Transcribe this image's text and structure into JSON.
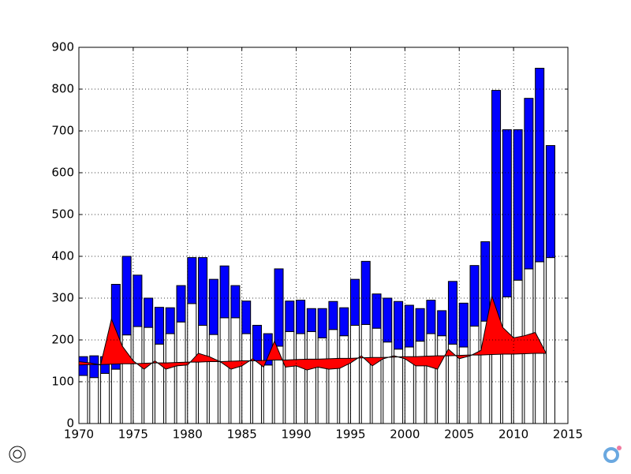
{
  "chart_data": {
    "type": "bar",
    "x": [
      1970,
      1971,
      1972,
      1973,
      1974,
      1975,
      1976,
      1977,
      1978,
      1979,
      1980,
      1981,
      1982,
      1983,
      1984,
      1985,
      1986,
      1987,
      1988,
      1989,
      1990,
      1991,
      1992,
      1993,
      1994,
      1995,
      1996,
      1997,
      1998,
      1999,
      2000,
      2001,
      2002,
      2003,
      2004,
      2005,
      2006,
      2007,
      2008,
      2009,
      2010,
      2011,
      2012,
      2013
    ],
    "series": [
      {
        "type": "bar",
        "color": "#ffffff",
        "values": [
          115,
          110,
          120,
          130,
          212,
          232,
          230,
          190,
          215,
          243,
          287,
          235,
          213,
          253,
          253,
          215,
          150,
          140,
          185,
          220,
          215,
          220,
          205,
          225,
          210,
          235,
          237,
          228,
          195,
          178,
          183,
          197,
          215,
          210,
          190,
          183,
          233,
          245,
          245,
          303,
          343,
          370,
          387,
          397
        ]
      },
      {
        "type": "bar",
        "color": "#0000ff",
        "values": [
          45,
          52,
          40,
          203,
          188,
          123,
          70,
          88,
          62,
          87,
          110,
          162,
          132,
          124,
          77,
          78,
          85,
          75,
          185,
          73,
          80,
          55,
          70,
          67,
          67,
          110,
          151,
          82,
          105,
          114,
          100,
          78,
          80,
          60,
          150,
          105,
          145,
          190,
          552,
          400,
          360,
          408,
          463,
          268
        ]
      },
      {
        "type": "line",
        "color": "#000000",
        "values": [
          140,
          141,
          141,
          142,
          143,
          143,
          144,
          145,
          145,
          146,
          147,
          147,
          148,
          148,
          149,
          150,
          150,
          151,
          152,
          152,
          153,
          154,
          154,
          155,
          156,
          156,
          157,
          158,
          158,
          159,
          160,
          160,
          161,
          162,
          162,
          163,
          164,
          164,
          165,
          166,
          166,
          167,
          168,
          168
        ]
      },
      {
        "type": "line",
        "color": "#000000",
        "values": [
          148,
          145,
          140,
          250,
          185,
          150,
          130,
          150,
          130,
          138,
          140,
          168,
          160,
          148,
          130,
          138,
          155,
          135,
          197,
          135,
          138,
          128,
          135,
          130,
          132,
          145,
          162,
          138,
          155,
          162,
          155,
          138,
          138,
          130,
          178,
          155,
          162,
          175,
          305,
          230,
          205,
          210,
          218,
          168
        ]
      }
    ],
    "fill_between_color": "#ff0000",
    "xlim": [
      1970,
      2015
    ],
    "xticks": [
      1970,
      1975,
      1980,
      1985,
      1990,
      1995,
      2000,
      2005,
      2010,
      2015
    ],
    "ylim": [
      0,
      900
    ],
    "yticks": [
      0,
      100,
      200,
      300,
      400,
      500,
      600,
      700,
      800,
      900
    ],
    "grid": true
  }
}
